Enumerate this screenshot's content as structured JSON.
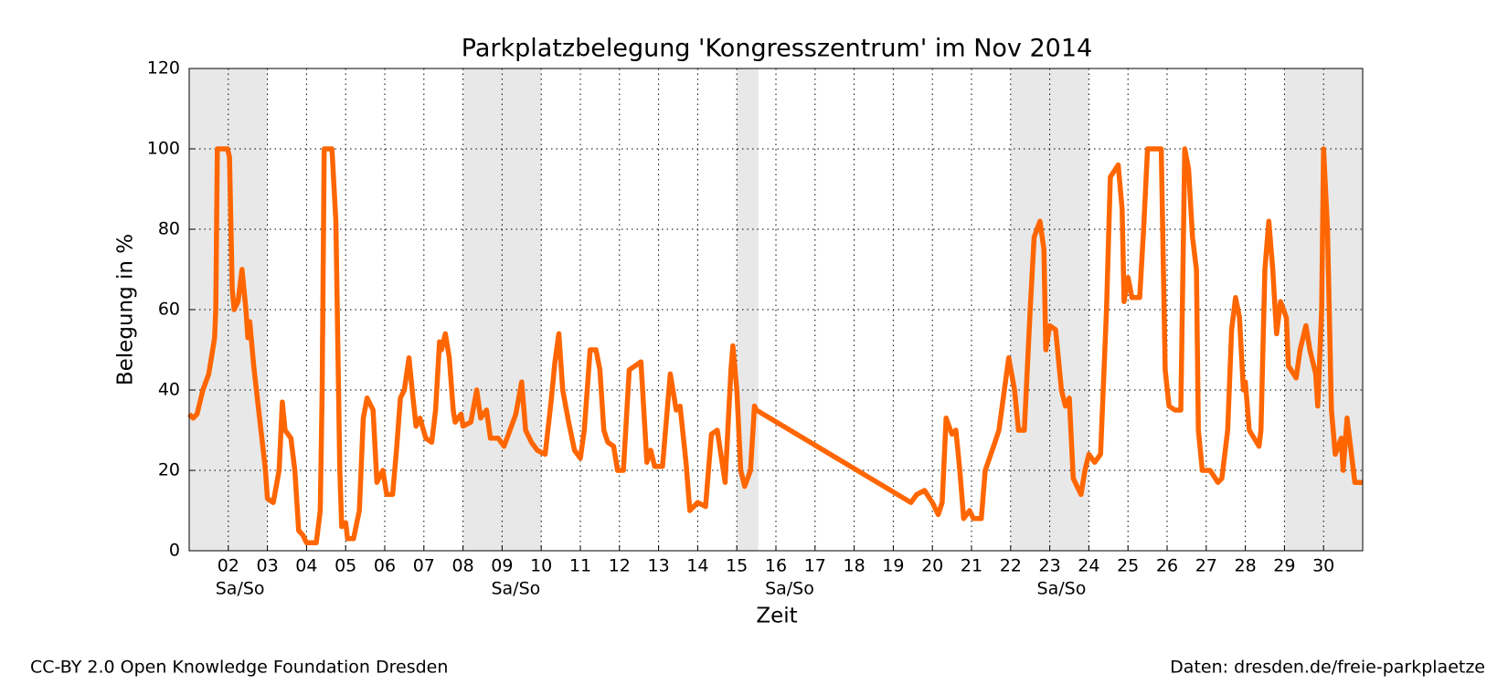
{
  "chart_data": {
    "type": "line",
    "title": "Parkplatzbelegung 'Kongresszentrum' im Nov 2014",
    "x_label": "Zeit",
    "y_label": "Belegung in %",
    "color": "#ff6600",
    "x": [
      1.0,
      1.1,
      1.2,
      1.35,
      1.5,
      1.6,
      1.65,
      1.68,
      1.72,
      1.98,
      2.03,
      2.1,
      2.15,
      2.25,
      2.35,
      2.45,
      2.5,
      2.55,
      2.65,
      2.8,
      2.95,
      3.0,
      3.15,
      3.3,
      3.38,
      3.45,
      3.6,
      3.7,
      3.8,
      3.9,
      4.0,
      4.25,
      4.35,
      4.4,
      4.45,
      4.65,
      4.75,
      4.85,
      4.9,
      5.0,
      5.05,
      5.2,
      5.35,
      5.45,
      5.55,
      5.7,
      5.8,
      5.95,
      6.05,
      6.2,
      6.3,
      6.4,
      6.5,
      6.62,
      6.7,
      6.8,
      6.9,
      7.05,
      7.2,
      7.3,
      7.4,
      7.45,
      7.55,
      7.65,
      7.75,
      7.8,
      7.95,
      8.0,
      8.2,
      8.35,
      8.45,
      8.6,
      8.7,
      8.9,
      9.05,
      9.2,
      9.35,
      9.5,
      9.6,
      9.75,
      9.9,
      10.1,
      10.25,
      10.35,
      10.45,
      10.55,
      10.7,
      10.85,
      11.0,
      11.1,
      11.25,
      11.4,
      11.5,
      11.6,
      11.7,
      11.85,
      11.95,
      12.1,
      12.25,
      12.4,
      12.55,
      12.7,
      12.8,
      12.9,
      13.1,
      13.3,
      13.45,
      13.55,
      13.7,
      13.8,
      14.0,
      14.2,
      14.35,
      14.5,
      14.7,
      14.85,
      14.9,
      15.0,
      15.1,
      15.2,
      15.35,
      15.45,
      15.5,
      19.45,
      19.6,
      19.8,
      20.0,
      20.15,
      20.25,
      20.35,
      20.5,
      20.6,
      20.7,
      20.8,
      20.95,
      21.05,
      21.25,
      21.35,
      21.6,
      21.7,
      21.95,
      22.1,
      22.2,
      22.35,
      22.5,
      22.6,
      22.75,
      22.85,
      22.9,
      23.0,
      23.15,
      23.3,
      23.4,
      23.5,
      23.6,
      23.8,
      23.9,
      24.0,
      24.15,
      24.3,
      24.45,
      24.55,
      24.75,
      24.85,
      24.9,
      25.0,
      25.1,
      25.3,
      25.4,
      25.5,
      25.85,
      25.95,
      26.05,
      26.2,
      26.35,
      26.45,
      26.55,
      26.65,
      26.75,
      26.8,
      26.9,
      27.1,
      27.3,
      27.4,
      27.55,
      27.65,
      27.75,
      27.85,
      27.95,
      28.0,
      28.1,
      28.35,
      28.4,
      28.5,
      28.6,
      28.7,
      28.8,
      28.9,
      29.05,
      29.1,
      29.3,
      29.4,
      29.55,
      29.65,
      29.8,
      29.85,
      29.95,
      30.0,
      30.1,
      30.2,
      30.3,
      30.45,
      30.5,
      30.6,
      30.7,
      30.8,
      31.0
    ],
    "values": [
      34,
      33,
      34,
      40,
      44,
      50,
      53,
      60,
      100,
      100,
      98,
      65,
      60,
      62,
      70,
      60,
      53,
      57,
      46,
      33,
      20,
      13,
      12,
      20,
      37,
      30,
      28,
      20,
      5,
      4,
      2,
      2,
      10,
      40,
      100,
      100,
      82,
      20,
      6,
      7,
      3,
      3,
      10,
      33,
      38,
      35,
      17,
      20,
      14,
      14,
      25,
      38,
      40,
      48,
      40,
      31,
      33,
      28,
      27,
      35,
      52,
      50,
      54,
      48,
      35,
      32,
      34,
      31,
      32,
      40,
      33,
      35,
      28,
      28,
      26,
      30,
      34,
      42,
      30,
      27,
      25,
      24,
      37,
      47,
      54,
      40,
      32,
      25,
      23,
      30,
      50,
      50,
      45,
      30,
      27,
      26,
      20,
      20,
      45,
      46,
      47,
      22,
      25,
      21,
      21,
      44,
      35,
      36,
      22,
      10,
      12,
      11,
      29,
      30,
      17,
      45,
      51,
      40,
      20,
      16,
      20,
      36,
      35,
      12,
      14,
      15,
      12,
      9,
      12,
      33,
      29,
      30,
      20,
      8,
      10,
      8,
      8,
      20,
      27,
      30,
      48,
      40,
      30,
      30,
      60,
      78,
      82,
      75,
      50,
      56,
      55,
      40,
      36,
      38,
      18,
      14,
      20,
      24,
      22,
      24,
      60,
      93,
      96,
      85,
      62,
      68,
      63,
      63,
      80,
      100,
      100,
      45,
      36,
      35,
      35,
      100,
      95,
      78,
      70,
      30,
      20,
      20,
      17,
      18,
      30,
      55,
      63,
      58,
      40,
      42,
      30,
      26,
      30,
      70,
      82,
      70,
      54,
      62,
      58,
      46,
      43,
      50,
      56,
      50,
      44,
      36,
      60,
      100,
      80,
      35,
      24,
      28,
      20,
      33,
      25,
      17,
      17
    ],
    "xlim": [
      1,
      31
    ],
    "xticks": [
      {
        "value": 2,
        "label": "02"
      },
      {
        "value": 3,
        "label": "03"
      },
      {
        "value": 4,
        "label": "04"
      },
      {
        "value": 5,
        "label": "05"
      },
      {
        "value": 6,
        "label": "06"
      },
      {
        "value": 7,
        "label": "07"
      },
      {
        "value": 8,
        "label": "08"
      },
      {
        "value": 9,
        "label": "09"
      },
      10,
      11,
      12,
      13,
      14,
      15,
      16,
      17,
      18,
      19,
      20,
      21,
      22,
      23,
      24,
      25,
      26,
      27,
      28,
      29,
      30
    ],
    "ylim": [
      0,
      120
    ],
    "yticks": [
      0,
      20,
      40,
      60,
      80,
      100,
      120
    ],
    "grid": true,
    "shaded_spans": [
      [
        1,
        3
      ],
      [
        8,
        10
      ],
      [
        15,
        15.55
      ],
      [
        22,
        24
      ],
      [
        29,
        31
      ]
    ],
    "shade_color": "#e8e8e8",
    "annotations": [
      {
        "text": "Sa/So",
        "x": 2.3
      },
      {
        "text": "Sa/So",
        "x": 9.35
      },
      {
        "text": "Sa/So",
        "x": 16.35
      },
      {
        "text": "Sa/So",
        "x": 23.3
      }
    ]
  },
  "footer": {
    "left": "CC-BY 2.0 Open Knowledge Foundation Dresden",
    "right": "Daten: dresden.de/freie-parkplaetze"
  }
}
